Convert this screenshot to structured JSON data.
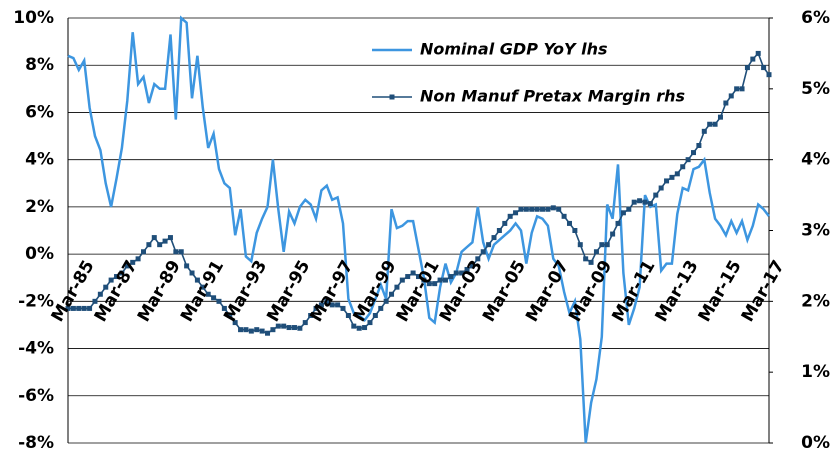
{
  "chart_data": {
    "type": "line",
    "categories": [
      "Mar-85",
      null,
      null,
      null,
      null,
      null,
      null,
      null,
      "Mar-87",
      null,
      null,
      null,
      null,
      null,
      null,
      null,
      "Mar-89",
      null,
      null,
      null,
      null,
      null,
      null,
      null,
      "Mar-91",
      null,
      null,
      null,
      null,
      null,
      null,
      null,
      "Mar-93",
      null,
      null,
      null,
      null,
      null,
      null,
      null,
      "Mar-95",
      null,
      null,
      null,
      null,
      null,
      null,
      null,
      "Mar-97",
      null,
      null,
      null,
      null,
      null,
      null,
      null,
      "Mar-99",
      null,
      null,
      null,
      null,
      null,
      null,
      null,
      "Mar-01",
      null,
      null,
      null,
      null,
      null,
      null,
      null,
      "Mar-03",
      null,
      null,
      null,
      null,
      null,
      null,
      null,
      "Mar-05",
      null,
      null,
      null,
      null,
      null,
      null,
      null,
      "Mar-07",
      null,
      null,
      null,
      null,
      null,
      null,
      null,
      "Mar-09",
      null,
      null,
      null,
      null,
      null,
      null,
      null,
      "Mar-11",
      null,
      null,
      null,
      null,
      null,
      null,
      null,
      "Mar-13",
      null,
      null,
      null,
      null,
      null,
      null,
      null,
      "Mar-15",
      null,
      null,
      null,
      null,
      null,
      null,
      null,
      "Mar-17",
      null,
      null
    ],
    "series": [
      {
        "name": "Nominal GDP YoY lhs",
        "color": "#3d96e0",
        "axis": "y",
        "values": [
          8.4,
          8.3,
          7.8,
          8.2,
          6.2,
          5.0,
          4.4,
          3.0,
          2.0,
          3.2,
          4.5,
          6.5,
          9.4,
          7.2,
          7.5,
          6.4,
          7.2,
          7.0,
          7.0,
          9.3,
          5.7,
          10.0,
          9.8,
          6.6,
          8.4,
          6.2,
          4.5,
          5.1,
          3.6,
          3.0,
          2.8,
          0.8,
          1.9,
          -0.1,
          -0.3,
          0.9,
          1.5,
          2.0,
          4.0,
          1.9,
          0.1,
          1.8,
          1.3,
          2.0,
          2.3,
          2.1,
          1.5,
          2.7,
          2.9,
          2.3,
          2.4,
          1.3,
          -1.9,
          -2.5,
          -2.6,
          -2.8,
          -2.5,
          -1.9,
          -1.3,
          -1.9,
          1.9,
          1.1,
          1.2,
          1.4,
          1.4,
          0.2,
          -1.0,
          -2.7,
          -2.9,
          -1.4,
          -0.4,
          -1.2,
          -0.8,
          0.1,
          0.3,
          0.5,
          2.0,
          0.5,
          -0.2,
          0.4,
          0.6,
          0.8,
          1.0,
          1.3,
          1.0,
          -0.4,
          0.9,
          1.6,
          1.5,
          1.2,
          -0.2,
          -0.5,
          -1.6,
          -2.5,
          -2.0,
          -3.6,
          -8.0,
          -6.3,
          -5.3,
          -3.5,
          2.1,
          1.5,
          3.8,
          -0.8,
          -3.0,
          -2.3,
          -1.4,
          2.5,
          2.0,
          2.1,
          -0.7,
          -0.4,
          -0.4,
          1.7,
          2.8,
          2.7,
          3.6,
          3.7,
          4.0,
          2.6,
          1.5,
          1.2,
          0.8,
          1.4,
          0.9,
          1.4,
          0.6,
          1.2,
          2.1,
          1.9,
          1.6
        ]
      },
      {
        "name": "Non Manuf Pretax Margin rhs",
        "color": "#1f4e79",
        "axis": "y2",
        "values": [
          1.9,
          1.9,
          1.9,
          1.9,
          1.9,
          2.0,
          2.1,
          2.2,
          2.3,
          2.35,
          2.4,
          2.5,
          2.55,
          2.6,
          2.7,
          2.8,
          2.9,
          2.8,
          2.85,
          2.9,
          2.7,
          2.7,
          2.5,
          2.4,
          2.3,
          2.2,
          2.1,
          2.05,
          2.0,
          1.9,
          1.8,
          1.7,
          1.6,
          1.6,
          1.58,
          1.6,
          1.58,
          1.55,
          1.6,
          1.65,
          1.65,
          1.63,
          1.63,
          1.62,
          1.7,
          1.8,
          1.9,
          1.95,
          2.0,
          1.95,
          1.95,
          1.9,
          1.8,
          1.65,
          1.62,
          1.63,
          1.7,
          1.8,
          1.9,
          2.0,
          2.1,
          2.2,
          2.3,
          2.35,
          2.4,
          2.35,
          2.3,
          2.25,
          2.25,
          2.3,
          2.3,
          2.35,
          2.4,
          2.4,
          2.45,
          2.5,
          2.6,
          2.7,
          2.8,
          2.9,
          3.0,
          3.1,
          3.2,
          3.25,
          3.3,
          3.3,
          3.3,
          3.3,
          3.3,
          3.3,
          3.32,
          3.3,
          3.2,
          3.1,
          3.0,
          2.8,
          2.6,
          2.55,
          2.7,
          2.8,
          2.8,
          2.95,
          3.1,
          3.25,
          3.3,
          3.4,
          3.42,
          3.4,
          3.38,
          3.5,
          3.6,
          3.7,
          3.75,
          3.8,
          3.9,
          4.0,
          4.1,
          4.2,
          4.4,
          4.5,
          4.5,
          4.6,
          4.8,
          4.9,
          5.0,
          5.0,
          5.3,
          5.42,
          5.5,
          5.3,
          5.2
        ]
      }
    ],
    "ylim": [
      -8,
      10
    ],
    "yticks": [
      {
        "value": -8,
        "label": "-8%"
      },
      {
        "value": -6,
        "label": "-6%"
      },
      {
        "value": -4,
        "label": "-4%"
      },
      {
        "value": -2,
        "label": "-2%"
      },
      {
        "value": 0,
        "label": "0%"
      },
      {
        "value": 2,
        "label": "2%"
      },
      {
        "value": 4,
        "label": "4%"
      },
      {
        "value": 6,
        "label": "6%"
      },
      {
        "value": 8,
        "label": "8%"
      },
      {
        "value": 10,
        "label": "10%"
      }
    ],
    "y2lim": [
      0,
      6
    ],
    "y2ticks": [
      {
        "value": 0,
        "label": "0%"
      },
      {
        "value": 1,
        "label": "1%"
      },
      {
        "value": 2,
        "label": "2%"
      },
      {
        "value": 3,
        "label": "3%"
      },
      {
        "value": 4,
        "label": "4%"
      },
      {
        "value": 5,
        "label": "5%"
      },
      {
        "value": 6,
        "label": "6%"
      }
    ],
    "grid": true,
    "legend": "top"
  }
}
